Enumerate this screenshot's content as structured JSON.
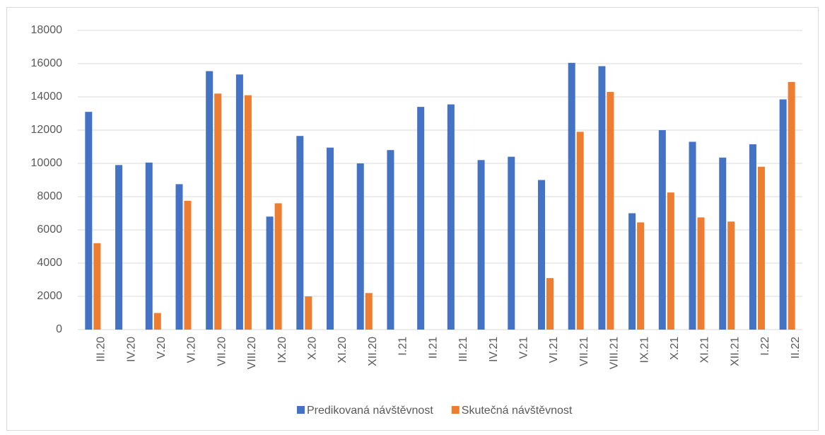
{
  "chart_data": {
    "type": "bar",
    "categories": [
      "III.20",
      "IV.20",
      "V.20",
      "VI.20",
      "VII.20",
      "VIII.20",
      "IX.20",
      "X.20",
      "XI.20",
      "XII.20",
      "I.21",
      "II.21",
      "III.21",
      "IV.21",
      "V.21",
      "VI.21",
      "VII.21",
      "VIII.21",
      "IX.21",
      "X.21",
      "XI.21",
      "XII.21",
      "I.22",
      "II.22"
    ],
    "series": [
      {
        "name": "Predikovaná návštěvnost",
        "color": "#4472c4",
        "values": [
          13100,
          9900,
          10050,
          8750,
          15550,
          15350,
          6800,
          11650,
          10950,
          10000,
          10800,
          13400,
          13550,
          10200,
          10400,
          9000,
          16050,
          15850,
          7000,
          12000,
          11300,
          10350,
          11150,
          13850
        ]
      },
      {
        "name": "Skutečná návštěvnost",
        "color": "#ed7d31",
        "values": [
          5200,
          null,
          1000,
          7750,
          14200,
          14100,
          7600,
          2000,
          null,
          2200,
          null,
          null,
          null,
          null,
          null,
          3100,
          11900,
          14300,
          6450,
          8250,
          6750,
          6500,
          9800,
          14900
        ]
      }
    ],
    "ylim": [
      0,
      18000
    ],
    "yticks": [
      0,
      2000,
      4000,
      6000,
      8000,
      10000,
      12000,
      14000,
      16000,
      18000
    ],
    "grid": true,
    "legend": "bottom"
  }
}
